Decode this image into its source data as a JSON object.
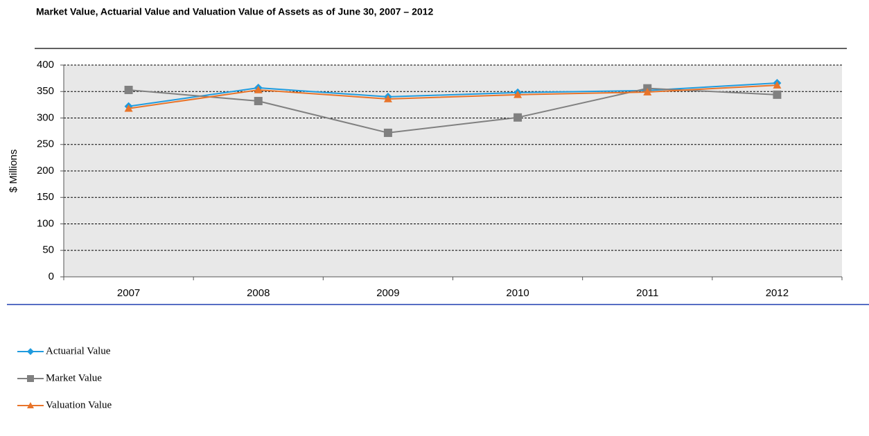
{
  "chart_data": {
    "type": "line",
    "title": "Market Value, Actuarial Value and Valuation Value of Assets as of June 30, 2007 – 2012",
    "y_label": "$ Millions",
    "categories": [
      "2007",
      "2008",
      "2009",
      "2010",
      "2011",
      "2012"
    ],
    "series": [
      {
        "name": "Actuarial Value",
        "color": "#1f9bde",
        "marker": "diamond",
        "values": [
          322,
          357,
          340,
          348,
          352,
          366
        ]
      },
      {
        "name": "Market Value",
        "color": "#808080",
        "marker": "square",
        "values": [
          353,
          332,
          272,
          301,
          356,
          344
        ]
      },
      {
        "name": "Valuation Value",
        "color": "#e8742a",
        "marker": "triangle",
        "values": [
          318,
          353,
          336,
          344,
          349,
          362
        ]
      }
    ],
    "ylim": [
      0,
      400
    ],
    "yticks": [
      0,
      50,
      100,
      150,
      200,
      250,
      300,
      350,
      400
    ],
    "grid": true,
    "legend": "bottom-left"
  }
}
